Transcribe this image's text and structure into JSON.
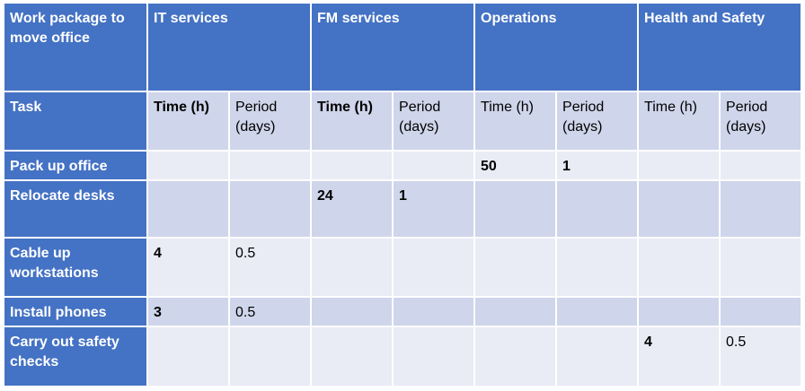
{
  "header": {
    "title": "Work package to move office",
    "departments": [
      "IT services",
      "FM services",
      "Operations",
      "Health and Safety"
    ]
  },
  "subheader": {
    "task_label": "Task",
    "time_label": "Time (h)",
    "period_label": "Period (days)"
  },
  "rows": [
    {
      "task": "Pack up office",
      "cells": [
        "",
        "",
        "",
        "",
        "50",
        "1",
        "",
        ""
      ]
    },
    {
      "task": "Relocate desks",
      "cells": [
        "",
        "",
        "24",
        "1",
        "",
        "",
        "",
        ""
      ]
    },
    {
      "task": "Cable up workstations",
      "cells": [
        "4",
        "0.5",
        "",
        "",
        "",
        "",
        "",
        ""
      ]
    },
    {
      "task": "Install phones",
      "cells": [
        "3",
        "0.5",
        "",
        "",
        "",
        "",
        "",
        ""
      ]
    },
    {
      "task": "Carry out safety checks",
      "cells": [
        "",
        "",
        "",
        "",
        "",
        "",
        "4",
        "0.5"
      ]
    }
  ],
  "colors": {
    "header": "#4472c4",
    "row_light": "#e9ebf5",
    "row_mid": "#cfd5ea"
  }
}
